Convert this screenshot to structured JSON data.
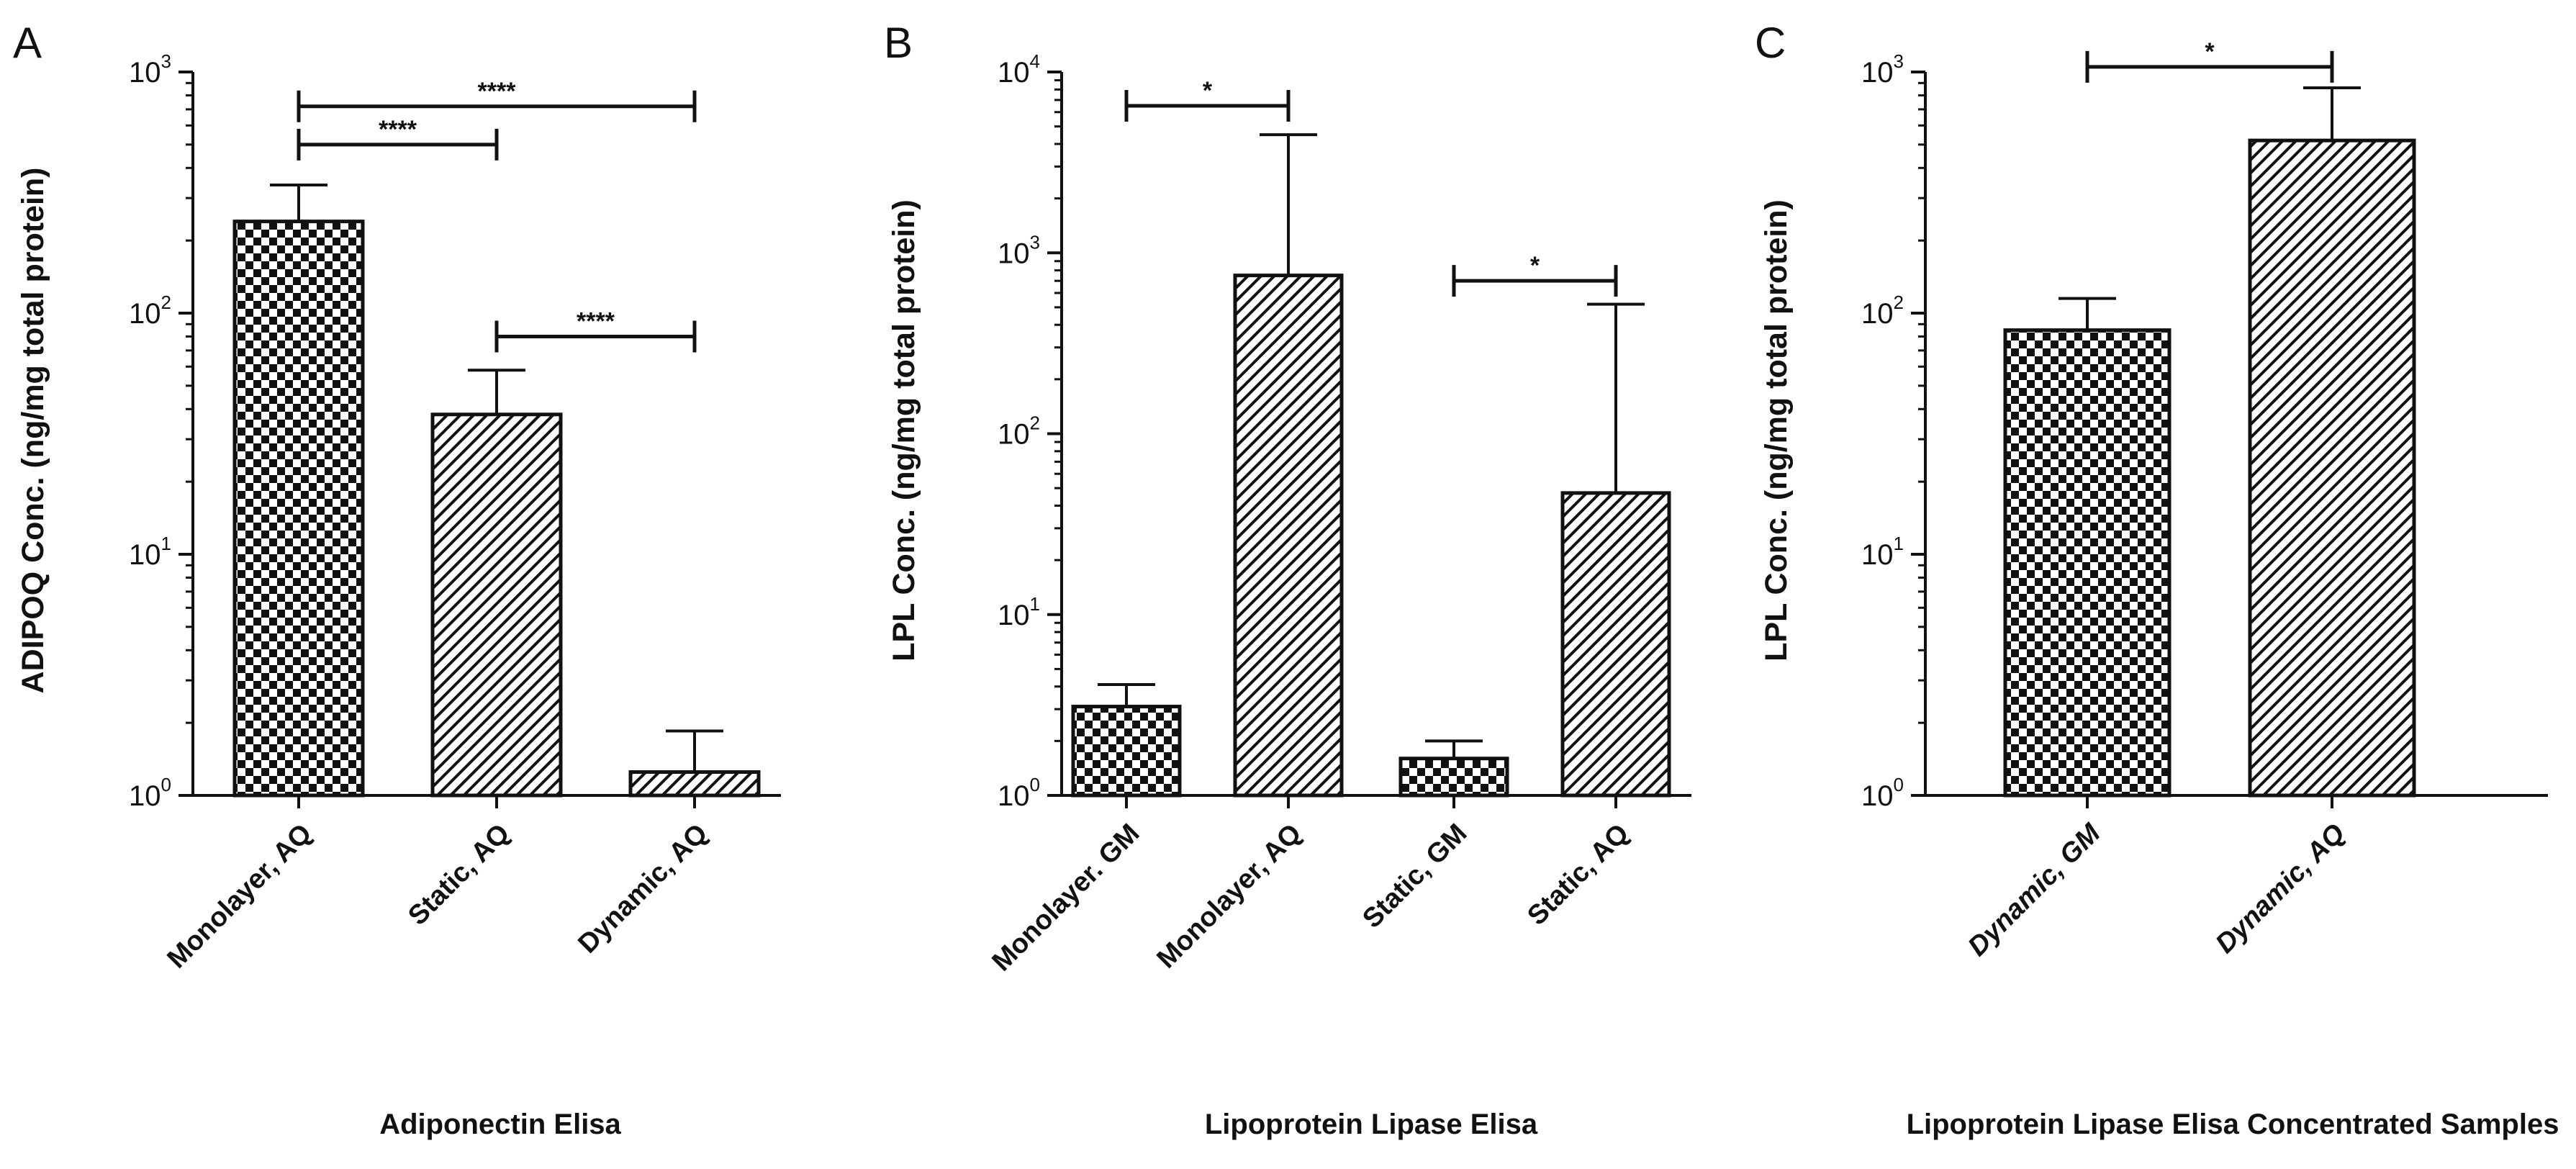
{
  "chart_data": [
    {
      "panel": "A",
      "type": "bar",
      "ylabel": "ADIPOQ Conc. (ng/mg total protein)",
      "xlabel": "Adiponectin Elisa",
      "yscale": "log",
      "ylim": [
        1,
        1000
      ],
      "yticks": [
        {
          "base": "10",
          "exp": "0"
        },
        {
          "base": "10",
          "exp": "1"
        },
        {
          "base": "10",
          "exp": "2"
        },
        {
          "base": "10",
          "exp": "3"
        }
      ],
      "categories": [
        "Monolayer, AQ",
        "Static, AQ",
        "Dynamic, AQ"
      ],
      "values": [
        240,
        38,
        1.25
      ],
      "error_upper": [
        340,
        58,
        1.85
      ],
      "patterns": [
        "checker",
        "hatch",
        "hatch"
      ],
      "italic_labels": false,
      "significance": [
        {
          "from": 0,
          "to": 2,
          "label": "****",
          "y": 720
        },
        {
          "from": 0,
          "to": 1,
          "label": "****",
          "y": 500
        },
        {
          "from": 1,
          "to": 2,
          "label": "****",
          "y": 80
        }
      ]
    },
    {
      "panel": "B",
      "type": "bar",
      "ylabel": "LPL Conc. (ng/mg total protein)",
      "xlabel": "Lipoprotein Lipase Elisa",
      "yscale": "log",
      "ylim": [
        1,
        10000
      ],
      "yticks": [
        {
          "base": "10",
          "exp": "0"
        },
        {
          "base": "10",
          "exp": "1"
        },
        {
          "base": "10",
          "exp": "2"
        },
        {
          "base": "10",
          "exp": "3"
        },
        {
          "base": "10",
          "exp": "4"
        }
      ],
      "categories": [
        "Monolayer. GM",
        "Monolayer, AQ",
        "Static, GM",
        "Static, AQ"
      ],
      "values": [
        3.1,
        750,
        1.6,
        47
      ],
      "error_upper": [
        4.1,
        4500,
        2.0,
        520
      ],
      "patterns": [
        "checker",
        "hatch",
        "checker",
        "hatch"
      ],
      "italic_labels": false,
      "significance": [
        {
          "from": 0,
          "to": 1,
          "label": "*",
          "y": 6500
        },
        {
          "from": 2,
          "to": 3,
          "label": "*",
          "y": 700
        }
      ]
    },
    {
      "panel": "C",
      "type": "bar",
      "ylabel": "LPL Conc. (ng/mg total protein)",
      "xlabel": "Lipoprotein Lipase Elisa Concentrated Samples",
      "yscale": "log",
      "ylim": [
        1,
        1000
      ],
      "yticks": [
        {
          "base": "10",
          "exp": "0"
        },
        {
          "base": "10",
          "exp": "1"
        },
        {
          "base": "10",
          "exp": "2"
        },
        {
          "base": "10",
          "exp": "3"
        }
      ],
      "categories": [
        "Dynamic, GM",
        "Dynamic, AQ"
      ],
      "values": [
        85,
        520
      ],
      "error_upper": [
        115,
        860
      ],
      "patterns": [
        "checker",
        "hatch"
      ],
      "italic_labels": true,
      "significance": [
        {
          "from": 0,
          "to": 1,
          "label": "*",
          "y": 1050
        }
      ]
    }
  ]
}
